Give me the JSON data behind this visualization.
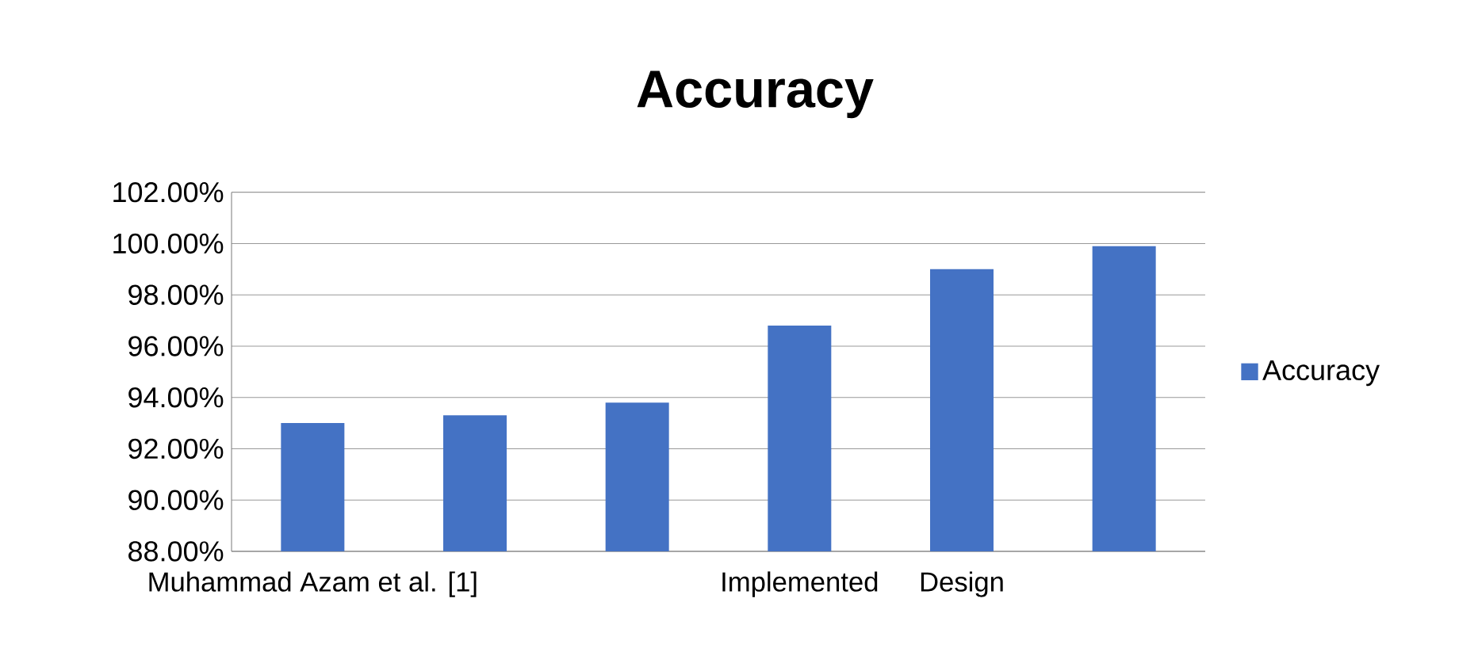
{
  "chart_data": {
    "type": "bar",
    "title": "Accuracy",
    "categories": [
      "Muhammad Azam et al. [1]",
      null,
      null,
      "Implemented",
      "Design",
      null
    ],
    "series": [
      {
        "name": "Accuracy",
        "color": "#4472c4",
        "values": [
          93.0,
          93.3,
          93.8,
          96.8,
          99.0,
          99.9
        ]
      }
    ],
    "ylim": [
      88,
      102
    ],
    "yticks": [
      {
        "value": 88,
        "label": "88.00%"
      },
      {
        "value": 90,
        "label": "90.00%"
      },
      {
        "value": 92,
        "label": "92.00%"
      },
      {
        "value": 94,
        "label": "94.00%"
      },
      {
        "value": 96,
        "label": "96.00%"
      },
      {
        "value": 98,
        "label": "98.00%"
      },
      {
        "value": 100,
        "label": "100.00%"
      },
      {
        "value": 102,
        "label": "102.00%"
      }
    ],
    "grid": "y",
    "legend": "right"
  }
}
